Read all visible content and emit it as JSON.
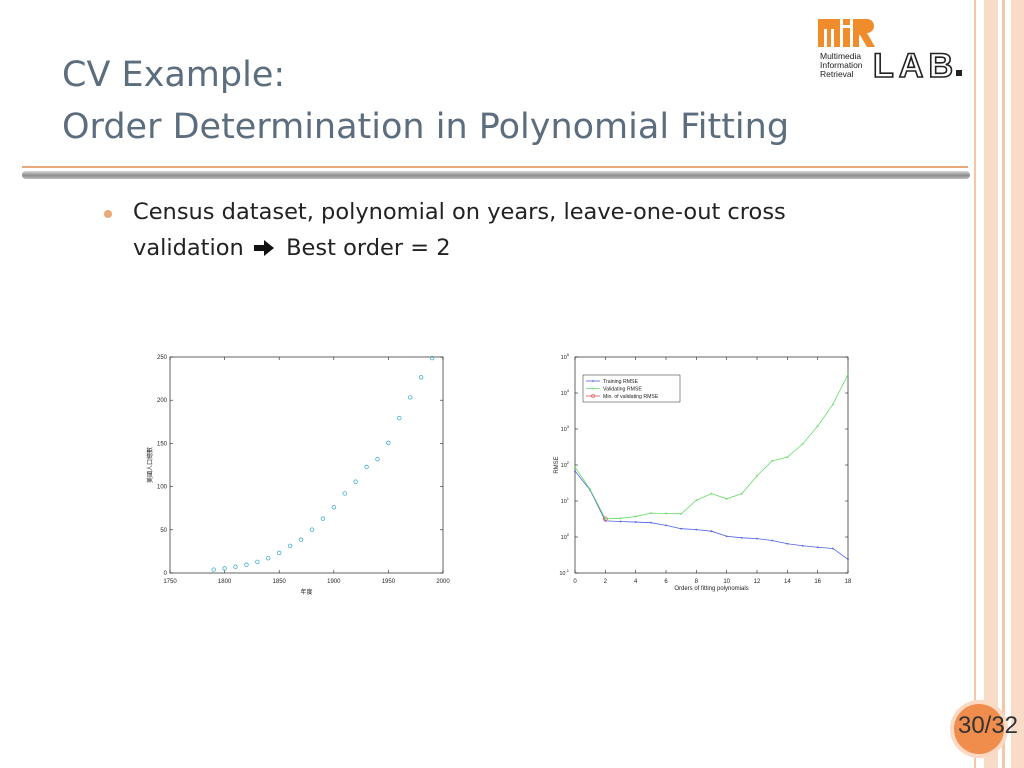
{
  "slide": {
    "title_line1": "CV Example:",
    "title_line2": "Order Determination in Polynomial Fitting",
    "bullet_line1": "Census dataset, polynomial on years, leave-one-out cross",
    "bullet_line2_pre": "validation",
    "bullet_line2_post": "Best order = 2",
    "page": "30/32"
  },
  "logo": {
    "mi": "mi",
    "r": "R",
    "lab": "LAB",
    "line1": "Multimedia",
    "line2": "Information",
    "line3": "Retrieval"
  },
  "colors": {
    "accent": "#e8a877",
    "title": "#5c6e7e",
    "logo_orange": "#f08c2c",
    "page_badge": "#f08c4c",
    "scatter": "#2aa5c8",
    "training": "#5060e0",
    "validating": "#66dd66",
    "min_validating": "#e05050"
  },
  "icons": {
    "bullet": "bullet-dot-icon",
    "arrow": "right-arrow-icon"
  },
  "chart_data": [
    {
      "type": "scatter",
      "title": "",
      "xlabel": "年度",
      "ylabel": "美國人口總數",
      "xlim": [
        1750,
        2000
      ],
      "ylim": [
        0,
        250
      ],
      "xticks": [
        1750,
        1800,
        1850,
        1900,
        1950,
        2000
      ],
      "yticks": [
        0,
        50,
        100,
        150,
        200,
        250
      ],
      "grid": false,
      "series": [
        {
          "x": [
            1790,
            1800,
            1810,
            1820,
            1830,
            1840,
            1850,
            1860,
            1870,
            1880,
            1890,
            1900,
            1910,
            1920,
            1930,
            1940,
            1950,
            1960,
            1970,
            1980,
            1990
          ],
          "y": [
            3.9,
            5.3,
            7.2,
            9.6,
            12.9,
            17.1,
            23.2,
            31.4,
            38.6,
            50.2,
            62.9,
            76.0,
            92.0,
            105.7,
            122.8,
            131.7,
            150.7,
            179.3,
            203.3,
            226.5,
            248.7
          ]
        }
      ]
    },
    {
      "type": "line",
      "title": "",
      "xlabel": "Orders of fitting polynomials",
      "ylabel": "RMSE",
      "xlim": [
        0,
        18
      ],
      "ylim": [
        0.1,
        100000
      ],
      "yscale": "log",
      "xticks": [
        0,
        2,
        4,
        6,
        8,
        10,
        12,
        14,
        16,
        18
      ],
      "yticks": [
        "10-1",
        "100",
        "101",
        "102",
        "103",
        "104",
        "105"
      ],
      "grid": false,
      "legend": "top-left",
      "x": [
        0,
        1,
        2,
        3,
        4,
        5,
        6,
        7,
        8,
        9,
        10,
        11,
        12,
        13,
        14,
        15,
        16,
        17,
        18
      ],
      "series": [
        {
          "name": "Training RMSE",
          "values": [
            68,
            20,
            2.8,
            2.7,
            2.6,
            2.5,
            2.1,
            1.7,
            1.6,
            1.45,
            1.05,
            0.95,
            0.9,
            0.8,
            0.65,
            0.57,
            0.52,
            0.48,
            0.24
          ]
        },
        {
          "name": "Validating RMSE",
          "values": [
            88,
            21,
            3.2,
            3.3,
            3.7,
            4.6,
            4.5,
            4.4,
            10.5,
            16,
            11.5,
            16,
            50,
            130,
            165,
            380,
            1200,
            4800,
            33000
          ]
        },
        {
          "name": "Min. of validating RMSE",
          "values": [
            null,
            null,
            3.2,
            null,
            null,
            null,
            null,
            null,
            null,
            null,
            null,
            null,
            null,
            null,
            null,
            null,
            null,
            null,
            null
          ]
        }
      ]
    }
  ]
}
